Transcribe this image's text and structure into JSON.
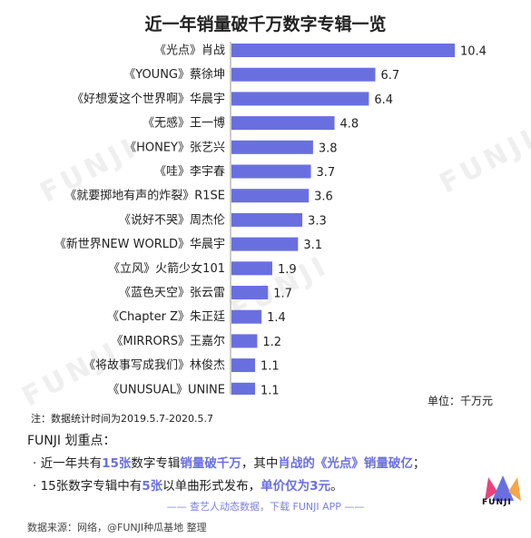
{
  "header": {
    "title": "近一年销量破千万数字专辑一览"
  },
  "chart_data": {
    "type": "bar",
    "orientation": "horizontal",
    "categories": [
      "《光点》肖战",
      "《YOUNG》蔡徐坤",
      "《好想爱这个世界啊》华晨宇",
      "《无感》王一博",
      "《HONEY》张艺兴",
      "《哇》李宇春",
      "《就要掷地有声的炸裂》R1SE",
      "《说好不哭》周杰伦",
      "《新世界NEW WORLD》华晨宇",
      "《立风》火箭少女101",
      "《蓝色天空》张云雷",
      "《Chapter Z》朱正廷",
      "《MIRRORS》王嘉尔",
      "《将故事写成我们》林俊杰",
      "《UNUSUAL》UNINE"
    ],
    "values": [
      10.4,
      6.7,
      6.4,
      4.8,
      3.8,
      3.7,
      3.6,
      3.3,
      3.1,
      1.9,
      1.7,
      1.4,
      1.2,
      1.1,
      1.1
    ],
    "value_labels": [
      "10.4",
      "6.7",
      "6.4",
      "4.8",
      "3.8",
      "3.7",
      "3.6",
      "3.3",
      "3.1",
      "1.9",
      "1.7",
      "1.4",
      "1.2",
      "1.1",
      "1.1"
    ],
    "xlim": [
      0,
      10.4
    ],
    "bar_color": "#6a6fe0",
    "grid": false,
    "unit_label": "单位：千万元"
  },
  "notes": {
    "text": "注：数据统计时间为2019.5.7-2020.5.7"
  },
  "key_points": {
    "title": "FUNJI 划重点：",
    "line1": {
      "p1": "· 近一年共有",
      "p2": "15张",
      "p3": "数字专辑",
      "p4": "销量破千万",
      "p5": "，其中",
      "p6": "肖战的《光点》销量破亿",
      "p7": "；"
    },
    "line2": {
      "p1": "· 15张数字专辑中有",
      "p2": "5张",
      "p3": "以单曲形式发布，",
      "p4": "单价仅为3元",
      "p5": "。"
    }
  },
  "promo": {
    "text": "—— 查艺人动态数据，下载 FUNJI APP ——"
  },
  "source": {
    "text": "数据来源：网络，@FUNJI种瓜基地 整理"
  },
  "logo": {
    "text": "FUNJI",
    "icon": "crown-icon",
    "colors": [
      "#e8447a",
      "#6a6fe0",
      "#f4a64a"
    ]
  },
  "watermark": {
    "text": "FUNJI"
  }
}
